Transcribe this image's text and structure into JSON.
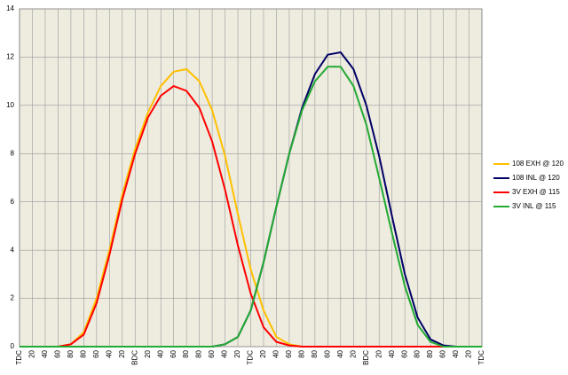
{
  "chart_data": {
    "type": "line",
    "categories": [
      "TDC",
      "20",
      "40",
      "60",
      "80",
      "80",
      "60",
      "40",
      "20",
      "BDC",
      "20",
      "40",
      "60",
      "80",
      "80",
      "60",
      "40",
      "20",
      "TDC",
      "20",
      "40",
      "60",
      "80",
      "80",
      "60",
      "40",
      "20",
      "BDC",
      "20",
      "40",
      "60",
      "80",
      "80",
      "60",
      "40",
      "20",
      "TDC"
    ],
    "series": [
      {
        "name": "108 EXH @ 120",
        "color": "#ffc000",
        "values": [
          0,
          0,
          0,
          0,
          0.1,
          0.6,
          2,
          4,
          6.3,
          8.2,
          9.7,
          10.8,
          11.4,
          11.5,
          11,
          9.8,
          7.9,
          5.5,
          3.2,
          1.5,
          0.4,
          0.1,
          0,
          0,
          0,
          0,
          0,
          0,
          0,
          0,
          0,
          0,
          0,
          0,
          0,
          0,
          0
        ]
      },
      {
        "name": "108 INL @ 120",
        "color": "#000066",
        "values": [
          0,
          0,
          0,
          0,
          0,
          0,
          0,
          0,
          0,
          0,
          0,
          0,
          0,
          0,
          0,
          0,
          0.1,
          0.4,
          1.5,
          3.5,
          5.8,
          8,
          9.9,
          11.3,
          12.1,
          12.2,
          11.5,
          10,
          7.9,
          5.4,
          3,
          1.2,
          0.3,
          0.05,
          0,
          0,
          0
        ]
      },
      {
        "name": "3V EXH @ 115",
        "color": "#ff0000",
        "values": [
          0,
          0,
          0,
          0,
          0.1,
          0.5,
          1.8,
          3.8,
          6.1,
          8,
          9.5,
          10.4,
          10.8,
          10.6,
          9.9,
          8.5,
          6.5,
          4.2,
          2.2,
          0.8,
          0.2,
          0.05,
          0,
          0,
          0,
          0,
          0,
          0,
          0,
          0,
          0,
          0,
          0,
          0,
          0,
          0,
          0
        ]
      },
      {
        "name": "3V INL @ 115",
        "color": "#22aa33",
        "values": [
          0,
          0,
          0,
          0,
          0,
          0,
          0,
          0,
          0,
          0,
          0,
          0,
          0,
          0,
          0,
          0,
          0.1,
          0.4,
          1.5,
          3.5,
          5.8,
          8,
          9.8,
          11,
          11.6,
          11.6,
          10.8,
          9.2,
          7,
          4.7,
          2.5,
          0.9,
          0.2,
          0,
          0,
          0,
          0
        ]
      }
    ],
    "ylim": [
      0,
      14
    ],
    "yticks": [
      0,
      2,
      4,
      6,
      8,
      10,
      12,
      14
    ],
    "grid": true,
    "legend": "right"
  }
}
